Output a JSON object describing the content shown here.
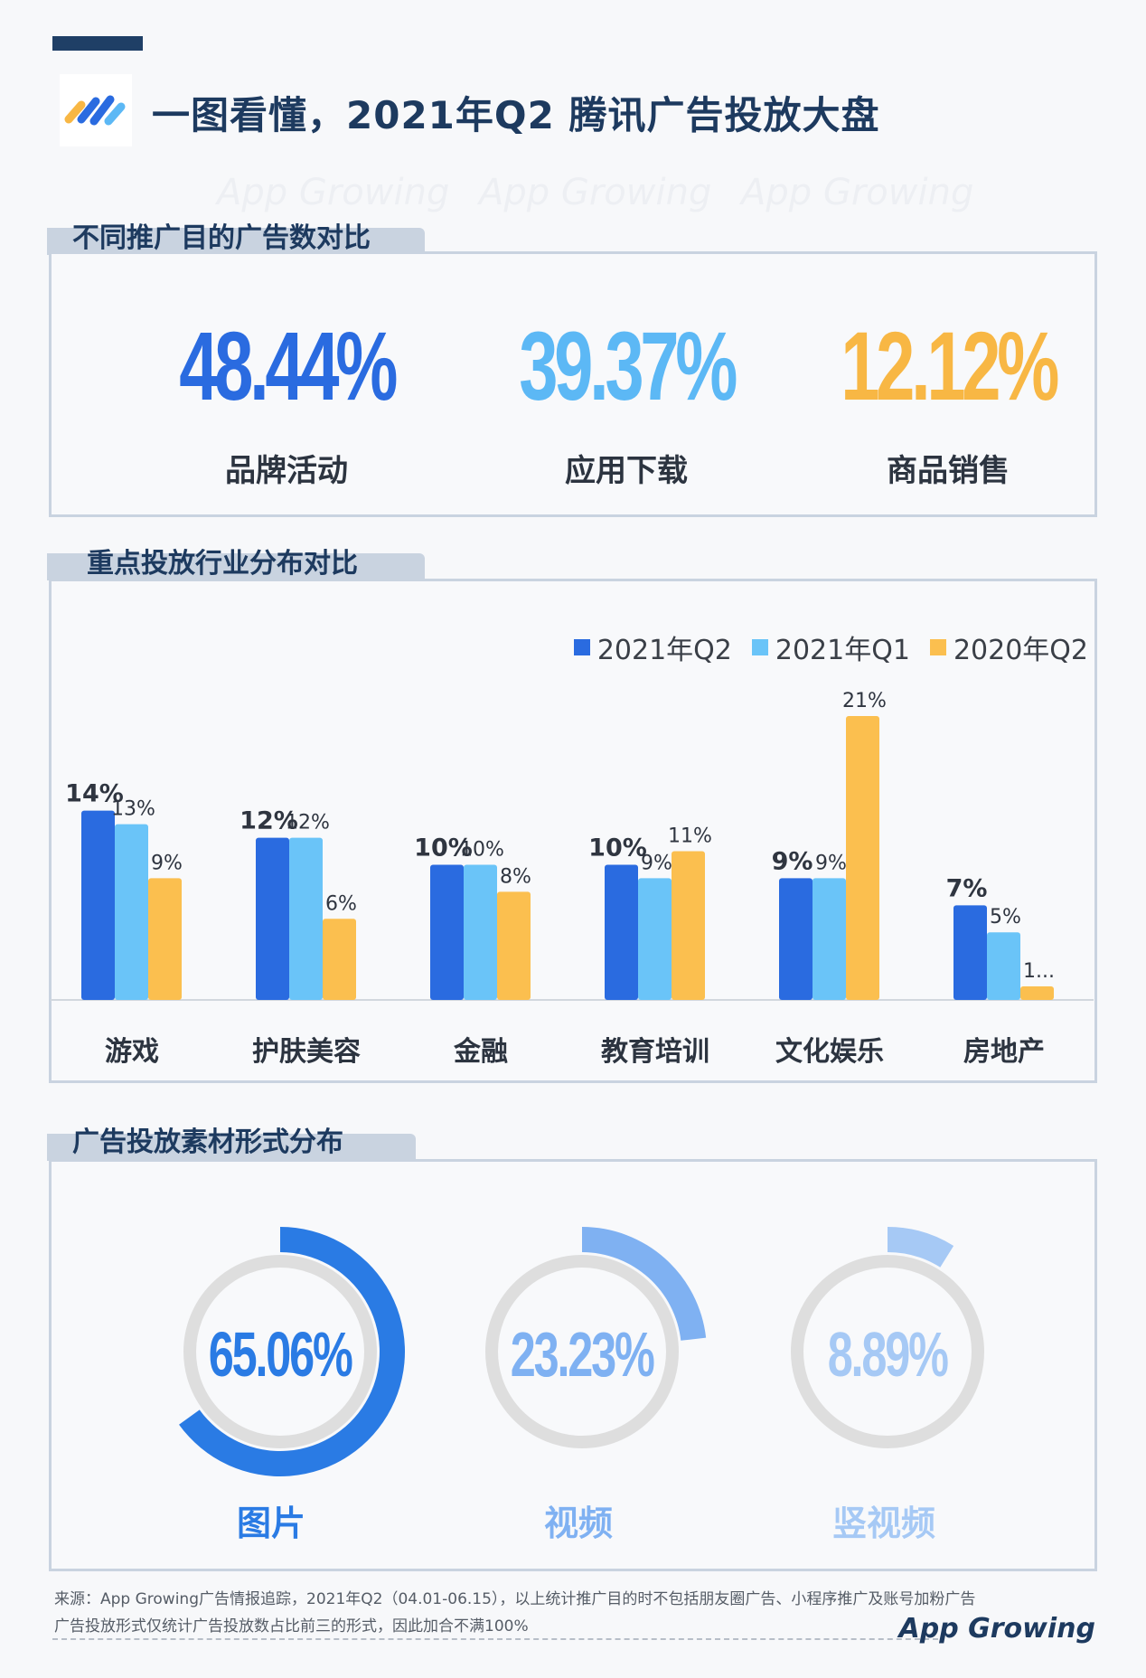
{
  "header": {
    "title": "一图看懂，2021年Q2 腾讯广告投放大盘"
  },
  "watermark": "App Growing",
  "section1": {
    "title": "不同推广目的广告数对比",
    "stats": [
      {
        "value": "48.44%",
        "label": "品牌活动",
        "color": "#2a6be0"
      },
      {
        "value": "39.37%",
        "label": "应用下载",
        "color": "#5cb8f5"
      },
      {
        "value": "12.12%",
        "label": "商品销售",
        "color": "#f8b744"
      }
    ]
  },
  "section2": {
    "title": "重点投放行业分布对比"
  },
  "section3": {
    "title": "广告投放素材形式分布",
    "donuts": [
      {
        "value": "65.06%",
        "label": "图片",
        "percent": 65.06,
        "color": "#2a7be4",
        "label_color": "#2a7be4"
      },
      {
        "value": "23.23%",
        "label": "视频",
        "percent": 23.23,
        "color": "#7fb1f2",
        "label_color": "#7fb1f2"
      },
      {
        "value": "8.89%",
        "label": "竖视频",
        "percent": 8.89,
        "color": "#a6c9f5",
        "label_color": "#a6c9f5"
      }
    ]
  },
  "footnotes": {
    "line1": "来源：App Growing广告情报追踪，2021年Q2（04.01-06.15），以上统计推广目的时不包括朋友圈广告、小程序推广及账号加粉广告",
    "line2": "广告投放形式仅统计广告投放数占比前三的形式，因此加合不满100%",
    "brand": "App Growing"
  },
  "chart_data": {
    "type": "bar",
    "categories": [
      "游戏",
      "护肤美容",
      "金融",
      "教育培训",
      "文化娱乐",
      "房地产"
    ],
    "series": [
      {
        "name": "2021年Q2",
        "color": "#2a6be0",
        "values": [
          14,
          12,
          10,
          10,
          9,
          7
        ],
        "labels": [
          "14%",
          "12%",
          "10%",
          "10%",
          "9%",
          "7%"
        ]
      },
      {
        "name": "2021年Q1",
        "color": "#6ac4f8",
        "values": [
          13,
          12,
          10,
          9,
          9,
          5
        ],
        "labels": [
          "13%",
          "12%",
          "10%",
          "9%",
          "9%",
          "5%"
        ]
      },
      {
        "name": "2020年Q2",
        "color": "#fbbf4f",
        "values": [
          9,
          6,
          8,
          11,
          21,
          1
        ],
        "labels": [
          "9%",
          "6%",
          "8%",
          "11%",
          "21%",
          "1..."
        ]
      }
    ],
    "legend": "top-right",
    "ylim": [
      0,
      21
    ],
    "grid": false
  }
}
